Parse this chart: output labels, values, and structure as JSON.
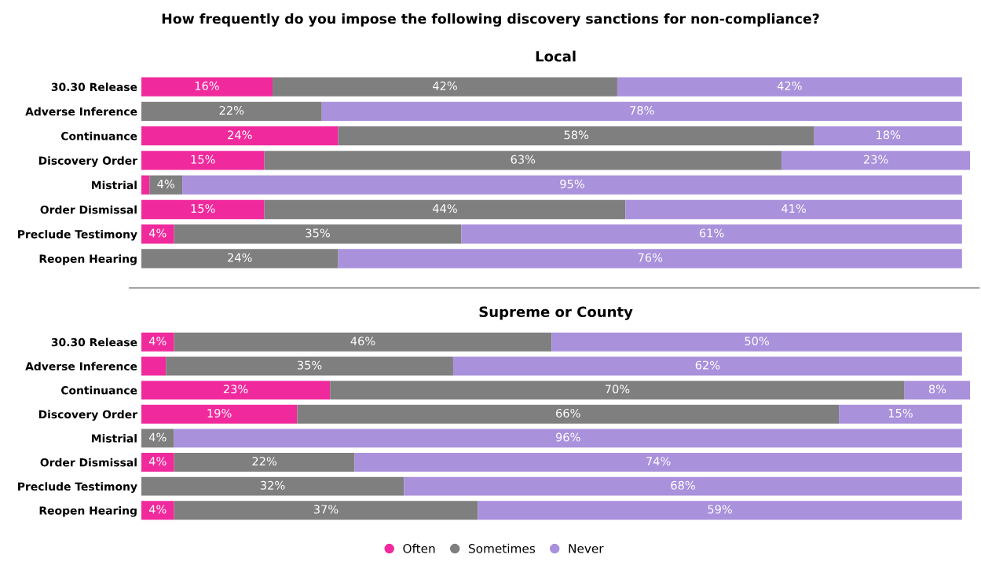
{
  "chart_data": [
    {
      "type": "bar",
      "orientation": "horizontal",
      "stacked": true,
      "title": "How frequently do you impose the following discovery sanctions for non-compliance?",
      "subtitle": "Local",
      "legend": "bottom",
      "categories": [
        "30.30 Release",
        "Adverse Inference",
        "Continuance",
        "Discovery Order",
        "Mistrial",
        "Order Dismissal",
        "Preclude Testimony",
        "Reopen Hearing"
      ],
      "series": [
        {
          "name": "Often",
          "color": "#f02a9c",
          "values": [
            16,
            0,
            24,
            15,
            1,
            15,
            4,
            0
          ],
          "value_labels": [
            "16%",
            null,
            "24%",
            "15%",
            null,
            "15%",
            "4%",
            null
          ]
        },
        {
          "name": "Sometimes",
          "color": "#7f7f7f",
          "values": [
            42,
            22,
            58,
            63,
            4,
            44,
            35,
            24
          ],
          "value_labels": [
            "42%",
            "22%",
            "58%",
            "63%",
            "4%",
            "44%",
            "35%",
            "24%"
          ]
        },
        {
          "name": "Never",
          "color": "#a991dc",
          "values": [
            42,
            78,
            18,
            23,
            95,
            41,
            61,
            76
          ],
          "value_labels": [
            "42%",
            "78%",
            "18%",
            "23%",
            "95%",
            "41%",
            "61%",
            "76%"
          ]
        }
      ]
    },
    {
      "type": "bar",
      "orientation": "horizontal",
      "stacked": true,
      "title": "Supreme or County",
      "categories": [
        "30.30 Release",
        "Adverse Inference",
        "Continuance",
        "Discovery Order",
        "Mistrial",
        "Order Dismissal",
        "Preclude Testimony",
        "Reopen Hearing"
      ],
      "series": [
        {
          "color": "#f02a9c",
          "values": [
            4,
            3,
            23,
            19,
            0,
            4,
            0,
            4
          ],
          "value_labels": [
            "4%",
            null,
            "23%",
            "19%",
            null,
            "4%",
            null,
            "4%"
          ]
        },
        {
          "color": "#7f7f7f",
          "values": [
            46,
            35,
            70,
            66,
            4,
            22,
            32,
            37
          ],
          "value_labels": [
            "46%",
            "35%",
            "70%",
            "66%",
            "4%",
            "22%",
            "32%",
            "37%"
          ]
        },
        {
          "color": "#a991dc",
          "values": [
            50,
            62,
            8,
            15,
            96,
            74,
            68,
            59
          ],
          "value_labels": [
            "50%",
            "62%",
            "8%",
            "15%",
            "96%",
            "74%",
            "68%",
            "59%"
          ]
        }
      ]
    }
  ]
}
